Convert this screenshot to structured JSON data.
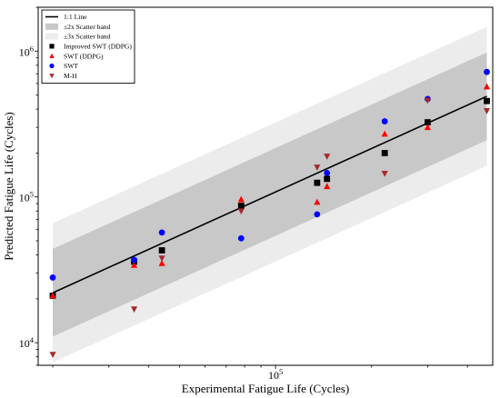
{
  "chart_data": {
    "type": "scatter",
    "xlabel": "Experimental Fatigue Life (Cycles)",
    "ylabel": "Predicted Fatigue Life (Cycles)",
    "xscale": "log",
    "yscale": "log",
    "xlim": [
      18000,
      480000
    ],
    "ylim": [
      7000,
      2000000
    ],
    "x_ticks": [
      {
        "value": 100000,
        "base": "10",
        "exp": "5"
      }
    ],
    "y_ticks": [
      {
        "value": 10000,
        "base": "10",
        "exp": "4"
      },
      {
        "value": 100000,
        "base": "10",
        "exp": "5"
      },
      {
        "value": 1000000,
        "base": "10",
        "exp": "6"
      }
    ],
    "legend_position": "top-left",
    "legend": [
      {
        "label": "1:1 Line",
        "marker": "line",
        "color": "#000000"
      },
      {
        "label": "±2x Scatter band",
        "marker": "band",
        "color": "#c8c8c8"
      },
      {
        "label": "±3x Scatter band",
        "marker": "band",
        "color": "#ececec"
      },
      {
        "label": "Improved SWT (DDPG)",
        "marker": "square",
        "color": "#000000"
      },
      {
        "label": "SWT (DDPG)",
        "marker": "triangle-up",
        "color": "#ff0000"
      },
      {
        "label": "SWT",
        "marker": "circle",
        "color": "#0000ff"
      },
      {
        "label": "M-H",
        "marker": "triangle-down",
        "color": "#a52a2a"
      }
    ],
    "reference_line": {
      "name": "1:1 Line",
      "x": [
        20000,
        460000
      ],
      "y": [
        22000,
        490000
      ]
    },
    "bands": [
      {
        "name": "±3x Scatter band",
        "factor": 3,
        "color": "#ececec"
      },
      {
        "name": "±2x Scatter band",
        "factor": 2,
        "color": "#c8c8c8"
      }
    ],
    "series": [
      {
        "name": "Improved SWT (DDPG)",
        "marker": "square",
        "color": "#000000",
        "points": [
          [
            20000,
            21000
          ],
          [
            36000,
            36000
          ],
          [
            44000,
            43000
          ],
          [
            78000,
            87000
          ],
          [
            135000,
            125000
          ],
          [
            145000,
            133000
          ],
          [
            220000,
            200000
          ],
          [
            300000,
            325000
          ],
          [
            460000,
            455000
          ]
        ]
      },
      {
        "name": "SWT (DDPG)",
        "marker": "triangle-up",
        "color": "#ff0000",
        "points": [
          [
            20000,
            21000
          ],
          [
            36000,
            34000
          ],
          [
            44000,
            35000
          ],
          [
            78000,
            96000
          ],
          [
            135000,
            92000
          ],
          [
            145000,
            118000
          ],
          [
            220000,
            270000
          ],
          [
            300000,
            300000
          ],
          [
            460000,
            570000
          ]
        ]
      },
      {
        "name": "SWT",
        "marker": "circle",
        "color": "#0000ff",
        "points": [
          [
            20000,
            28000
          ],
          [
            36000,
            37000
          ],
          [
            44000,
            57000
          ],
          [
            78000,
            52000
          ],
          [
            135000,
            76000
          ],
          [
            145000,
            146000
          ],
          [
            220000,
            330000
          ],
          [
            300000,
            470000
          ],
          [
            460000,
            720000
          ]
        ]
      },
      {
        "name": "M-H",
        "marker": "triangle-down",
        "color": "#a52a2a",
        "points": [
          [
            20000,
            8300
          ],
          [
            36000,
            17000
          ],
          [
            44000,
            38000
          ],
          [
            78000,
            80000
          ],
          [
            135000,
            160000
          ],
          [
            145000,
            190000
          ],
          [
            220000,
            145000
          ],
          [
            300000,
            460000
          ],
          [
            460000,
            390000
          ]
        ]
      }
    ]
  }
}
